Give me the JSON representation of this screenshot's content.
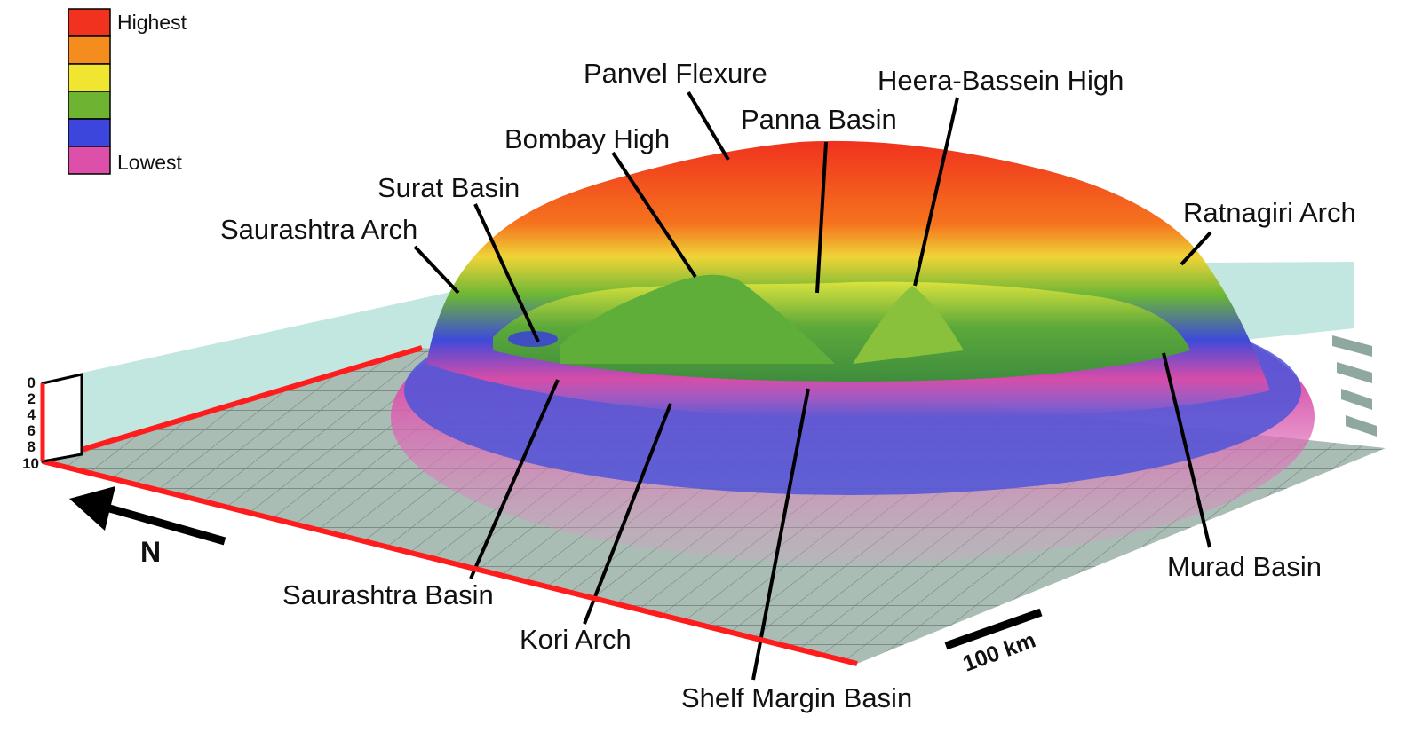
{
  "legend": {
    "high_label": "Highest",
    "low_label": "Lowest",
    "colors": [
      "#f0321e",
      "#f58c1e",
      "#f0e632",
      "#6eb432",
      "#3c46dc",
      "#dc50aa"
    ]
  },
  "depth_scale": {
    "ticks": [
      "0",
      "2",
      "4",
      "6",
      "8",
      "10"
    ]
  },
  "north_arrow": {
    "label": "N"
  },
  "scale_bar": {
    "label": "100 km"
  },
  "features": {
    "panvel_flexure": "Panvel Flexure",
    "heera_bassein_high": "Heera-Bassein High",
    "panna_basin": "Panna Basin",
    "bombay_high": "Bombay High",
    "surat_basin": "Surat Basin",
    "saurashtra_arch": "Saurashtra Arch",
    "ratnagiri_arch": "Ratnagiri Arch",
    "murad_basin": "Murad Basin",
    "saurashtra_basin": "Saurashtra Basin",
    "kori_arch": "Kori Arch",
    "shelf_margin_basin": "Shelf Margin Basin"
  }
}
